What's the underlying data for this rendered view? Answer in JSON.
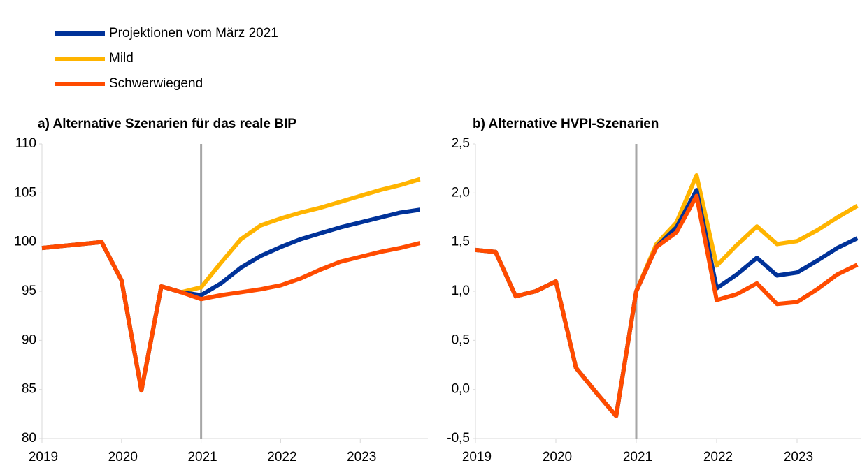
{
  "chart_data": [
    {
      "type": "line",
      "title": "a) Alternative Szenarien für das reale BIP",
      "x": [
        2019,
        2019.25,
        2019.5,
        2019.75,
        2020,
        2020.25,
        2020.5,
        2020.75,
        2021,
        2021.25,
        2021.5,
        2021.75,
        2022,
        2022.25,
        2022.5,
        2022.75,
        2023,
        2023.25,
        2023.5,
        2023.75
      ],
      "series": [
        {
          "name": "Projektionen vom März 2021",
          "color": "#003299",
          "values": [
            99.4,
            99.6,
            99.8,
            100.0,
            96.1,
            84.9,
            95.5,
            94.9,
            94.6,
            95.8,
            97.4,
            98.6,
            99.5,
            100.3,
            100.9,
            101.5,
            102.0,
            102.5,
            103.0,
            103.3
          ]
        },
        {
          "name": "Mild",
          "color": "#ffb400",
          "values": [
            99.4,
            99.6,
            99.8,
            100.0,
            96.1,
            84.9,
            95.5,
            94.9,
            95.4,
            97.9,
            100.3,
            101.7,
            102.4,
            103.0,
            103.5,
            104.1,
            104.7,
            105.3,
            105.8,
            106.4
          ]
        },
        {
          "name": "Schwerwiegend",
          "color": "#ff4b00",
          "values": [
            99.4,
            99.6,
            99.8,
            100.0,
            96.1,
            84.9,
            95.5,
            94.9,
            94.2,
            94.6,
            94.9,
            95.2,
            95.6,
            96.3,
            97.2,
            98.0,
            98.5,
            99.0,
            99.4,
            99.9
          ]
        }
      ],
      "xlim": [
        2019,
        2023.85
      ],
      "xticks": [
        2019,
        2020,
        2021,
        2022,
        2023
      ],
      "ylim": [
        80,
        110
      ],
      "yticks": [
        80,
        85,
        90,
        95,
        100,
        105,
        110
      ],
      "vline": 2021
    },
    {
      "type": "line",
      "title": "b) Alternative HVPI-Szenarien",
      "x": [
        2019,
        2019.25,
        2019.5,
        2019.75,
        2020,
        2020.25,
        2020.5,
        2020.75,
        2021,
        2021.25,
        2021.5,
        2021.75,
        2022,
        2022.25,
        2022.5,
        2022.75,
        2023,
        2023.25,
        2023.5,
        2023.75
      ],
      "series": [
        {
          "name": "Projektionen vom März 2021",
          "color": "#003299",
          "values": [
            1.42,
            1.4,
            0.95,
            1.0,
            1.1,
            0.22,
            -0.03,
            -0.27,
            1.0,
            1.45,
            1.65,
            2.03,
            1.03,
            1.17,
            1.34,
            1.16,
            1.19,
            1.31,
            1.44,
            1.54
          ]
        },
        {
          "name": "Mild",
          "color": "#ffb400",
          "values": [
            1.42,
            1.4,
            0.95,
            1.0,
            1.1,
            0.22,
            -0.03,
            -0.27,
            1.0,
            1.48,
            1.7,
            2.18,
            1.26,
            1.47,
            1.66,
            1.48,
            1.51,
            1.62,
            1.75,
            1.87
          ]
        },
        {
          "name": "Schwerwiegend",
          "color": "#ff4b00",
          "values": [
            1.42,
            1.4,
            0.95,
            1.0,
            1.1,
            0.22,
            -0.03,
            -0.27,
            1.0,
            1.45,
            1.6,
            1.97,
            0.91,
            0.97,
            1.08,
            0.87,
            0.89,
            1.02,
            1.17,
            1.27
          ]
        }
      ],
      "xlim": [
        2019,
        2023.8
      ],
      "xticks": [
        2019,
        2020,
        2021,
        2022,
        2023
      ],
      "ylim": [
        -0.5,
        2.5
      ],
      "yticks": [
        {
          "value": -0.5,
          "label": "-0,5"
        },
        {
          "value": 0.0,
          "label": "0,0"
        },
        {
          "value": 0.5,
          "label": "0,5"
        },
        {
          "value": 1.0,
          "label": "1,0"
        },
        {
          "value": 1.5,
          "label": "1,5"
        },
        {
          "value": 2.0,
          "label": "2,0"
        },
        {
          "value": 2.5,
          "label": "2,5"
        }
      ],
      "vline": 2021
    }
  ]
}
